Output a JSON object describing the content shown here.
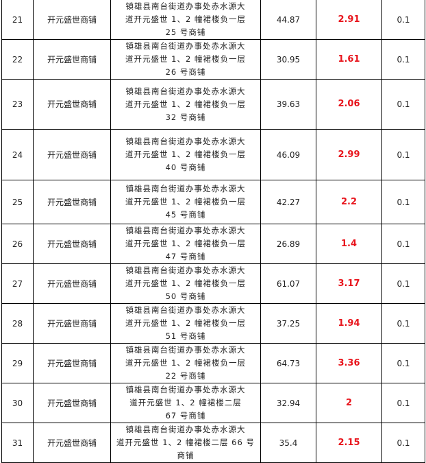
{
  "accent_color": "#e8141c",
  "rows": [
    {
      "no": "21",
      "name": "开元盛世商铺",
      "address": [
        "镇雄县南台街道办事处赤水源大",
        "道开元盛世 1、2 幢裙楼负一层",
        "25 号商铺"
      ],
      "area": "44.87",
      "value": "2.91",
      "rate": "0.1"
    },
    {
      "no": "22",
      "name": "开元盛世商铺",
      "address": [
        "镇雄县南台街道办事处赤水源大",
        "道开元盛世 1、2 幢裙楼负一层",
        "26 号商铺"
      ],
      "area": "30.95",
      "value": "1.61",
      "rate": "0.1"
    },
    {
      "no": "23",
      "name": "开元盛世商铺",
      "address": [
        "镇雄县南台街道办事处赤水源大",
        "道开元盛世 1、2 幢裙楼负一层",
        "32 号商铺"
      ],
      "area": "39.63",
      "value": "2.06",
      "rate": "0.1"
    },
    {
      "no": "24",
      "name": "开元盛世商铺",
      "address": [
        "镇雄县南台街道办事处赤水源大",
        "道开元盛世 1、2 幢裙楼负一层",
        "40 号商铺"
      ],
      "area": "46.09",
      "value": "2.99",
      "rate": "0.1"
    },
    {
      "no": "25",
      "name": "开元盛世商铺",
      "address": [
        "镇雄县南台街道办事处赤水源大",
        "道开元盛世 1、2 幢裙楼负一层",
        "45 号商铺"
      ],
      "area": "42.27",
      "value": "2.2",
      "rate": "0.1"
    },
    {
      "no": "26",
      "name": "开元盛世商铺",
      "address": [
        "镇雄县南台街道办事处赤水源大",
        "道开元盛世 1、2 幢裙楼负一层",
        "47 号商铺"
      ],
      "area": "26.89",
      "value": "1.4",
      "rate": "0.1"
    },
    {
      "no": "27",
      "name": "开元盛世商铺",
      "address": [
        "镇雄县南台街道办事处赤水源大",
        "道开元盛世 1、2 幢裙楼负一层",
        "50 号商铺"
      ],
      "area": "61.07",
      "value": "3.17",
      "rate": "0.1"
    },
    {
      "no": "28",
      "name": "开元盛世商铺",
      "address": [
        "镇雄县南台街道办事处赤水源大",
        "道开元盛世 1、2 幢裙楼负一层",
        "51 号商铺"
      ],
      "area": "37.25",
      "value": "1.94",
      "rate": "0.1"
    },
    {
      "no": "29",
      "name": "开元盛世商铺",
      "address": [
        "镇雄县南台街道办事处赤水源大",
        "道开元盛世 1、2 幢裙楼负一层",
        "22 号商铺"
      ],
      "area": "64.73",
      "value": "3.36",
      "rate": "0.1"
    },
    {
      "no": "30",
      "name": "开元盛世商铺",
      "address": [
        "镇雄县南台街道办事处赤水源大",
        "道开元盛世 1、2 幢裙楼二层",
        "67 号商铺"
      ],
      "area": "32.94",
      "value": "2",
      "rate": "0.1"
    },
    {
      "no": "31",
      "name": "开元盛世商铺",
      "address": [
        "镇雄县南台街道办事处赤水源大",
        "道开元盛世 1、2 幢裙楼二层 66 号",
        "商铺"
      ],
      "area": "35.4",
      "value": "2.15",
      "rate": "0.1"
    }
  ]
}
